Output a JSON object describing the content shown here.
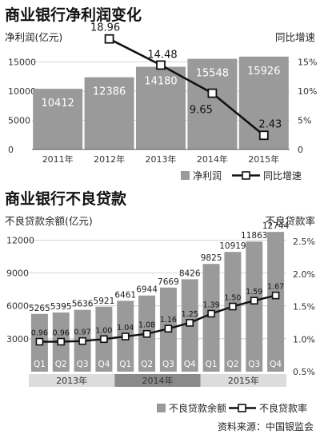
{
  "chart_data": [
    {
      "type": "bar",
      "title": "商业银行净利润变化",
      "ylabel": "净利润(亿元)",
      "y2label": "同比增速",
      "categories": [
        "2011年",
        "2012年",
        "2013年",
        "2014年",
        "2015年"
      ],
      "ylim": [
        0,
        17000
      ],
      "yticks": [
        0,
        5000,
        10000,
        15000
      ],
      "y2lim": [
        0,
        17
      ],
      "y2ticks": [
        "0",
        "5%",
        "10%",
        "15%"
      ],
      "series": [
        {
          "name": "净利润",
          "kind": "bar",
          "values": [
            10412,
            12386,
            14180,
            15548,
            15926
          ]
        },
        {
          "name": "同比增速",
          "kind": "line",
          "values": [
            null,
            18.96,
            14.48,
            9.65,
            2.43
          ]
        }
      ],
      "value_labels": [
        "10412",
        "12386",
        "14180",
        "15548",
        "15926"
      ],
      "line_labels": [
        "",
        "18.96",
        "14.48",
        "9.65",
        "2.43"
      ],
      "bar_color": "#9a9a9a",
      "line_color": "#111111",
      "legend": [
        "净利润",
        "同比增速"
      ],
      "legend_position": "bottom-right",
      "grid": true
    },
    {
      "type": "bar",
      "title": "商业银行不良贷款",
      "ylabel": "不良贷款余额(亿元)",
      "y2label": "不良贷款率",
      "categories": [
        "Q1",
        "Q2",
        "Q3",
        "Q4",
        "Q1",
        "Q2",
        "Q3",
        "Q4",
        "Q1",
        "Q2",
        "Q3",
        "Q4"
      ],
      "year_groups": [
        {
          "label": "2013年",
          "start": 0,
          "end": 3,
          "highlight": false
        },
        {
          "label": "2014年",
          "start": 4,
          "end": 7,
          "highlight": true
        },
        {
          "label": "2015年",
          "start": 8,
          "end": 11,
          "highlight": false
        }
      ],
      "ylim": [
        0,
        12900
      ],
      "yticks": [
        3000,
        6000,
        9000,
        12000
      ],
      "y2lim": [
        0.5,
        2.5
      ],
      "y2ticks": [
        "0.5%",
        "1.0%",
        "1.5%",
        "2.0%",
        "2.5%"
      ],
      "series": [
        {
          "name": "不良贷款余额",
          "kind": "bar",
          "values": [
            5265,
            5395,
            5636,
            5921,
            6461,
            6944,
            7669,
            8426,
            9825,
            10919,
            11863,
            12744
          ]
        },
        {
          "name": "不良贷款率",
          "kind": "line",
          "values": [
            0.96,
            0.96,
            0.97,
            1.0,
            1.04,
            1.08,
            1.16,
            1.25,
            1.39,
            1.5,
            1.59,
            1.67
          ]
        }
      ],
      "value_labels": [
        "5265",
        "5395",
        "5636",
        "5921",
        "6461",
        "6944",
        "7669",
        "8426",
        "9825",
        "10919",
        "11863",
        "12744"
      ],
      "line_labels": [
        "0.96",
        "0.96",
        "0.97",
        "1.00",
        "1.04",
        "1.08",
        "1.16",
        "1.25",
        "1.39",
        "1.50",
        "1.59",
        "1.67"
      ],
      "bar_color": "#9a9a9a",
      "line_color": "#111111",
      "legend": [
        "不良贷款余额",
        "不良贷款率"
      ],
      "legend_position": "bottom-right",
      "grid": true
    }
  ],
  "source": "资料来源：中国银监会"
}
